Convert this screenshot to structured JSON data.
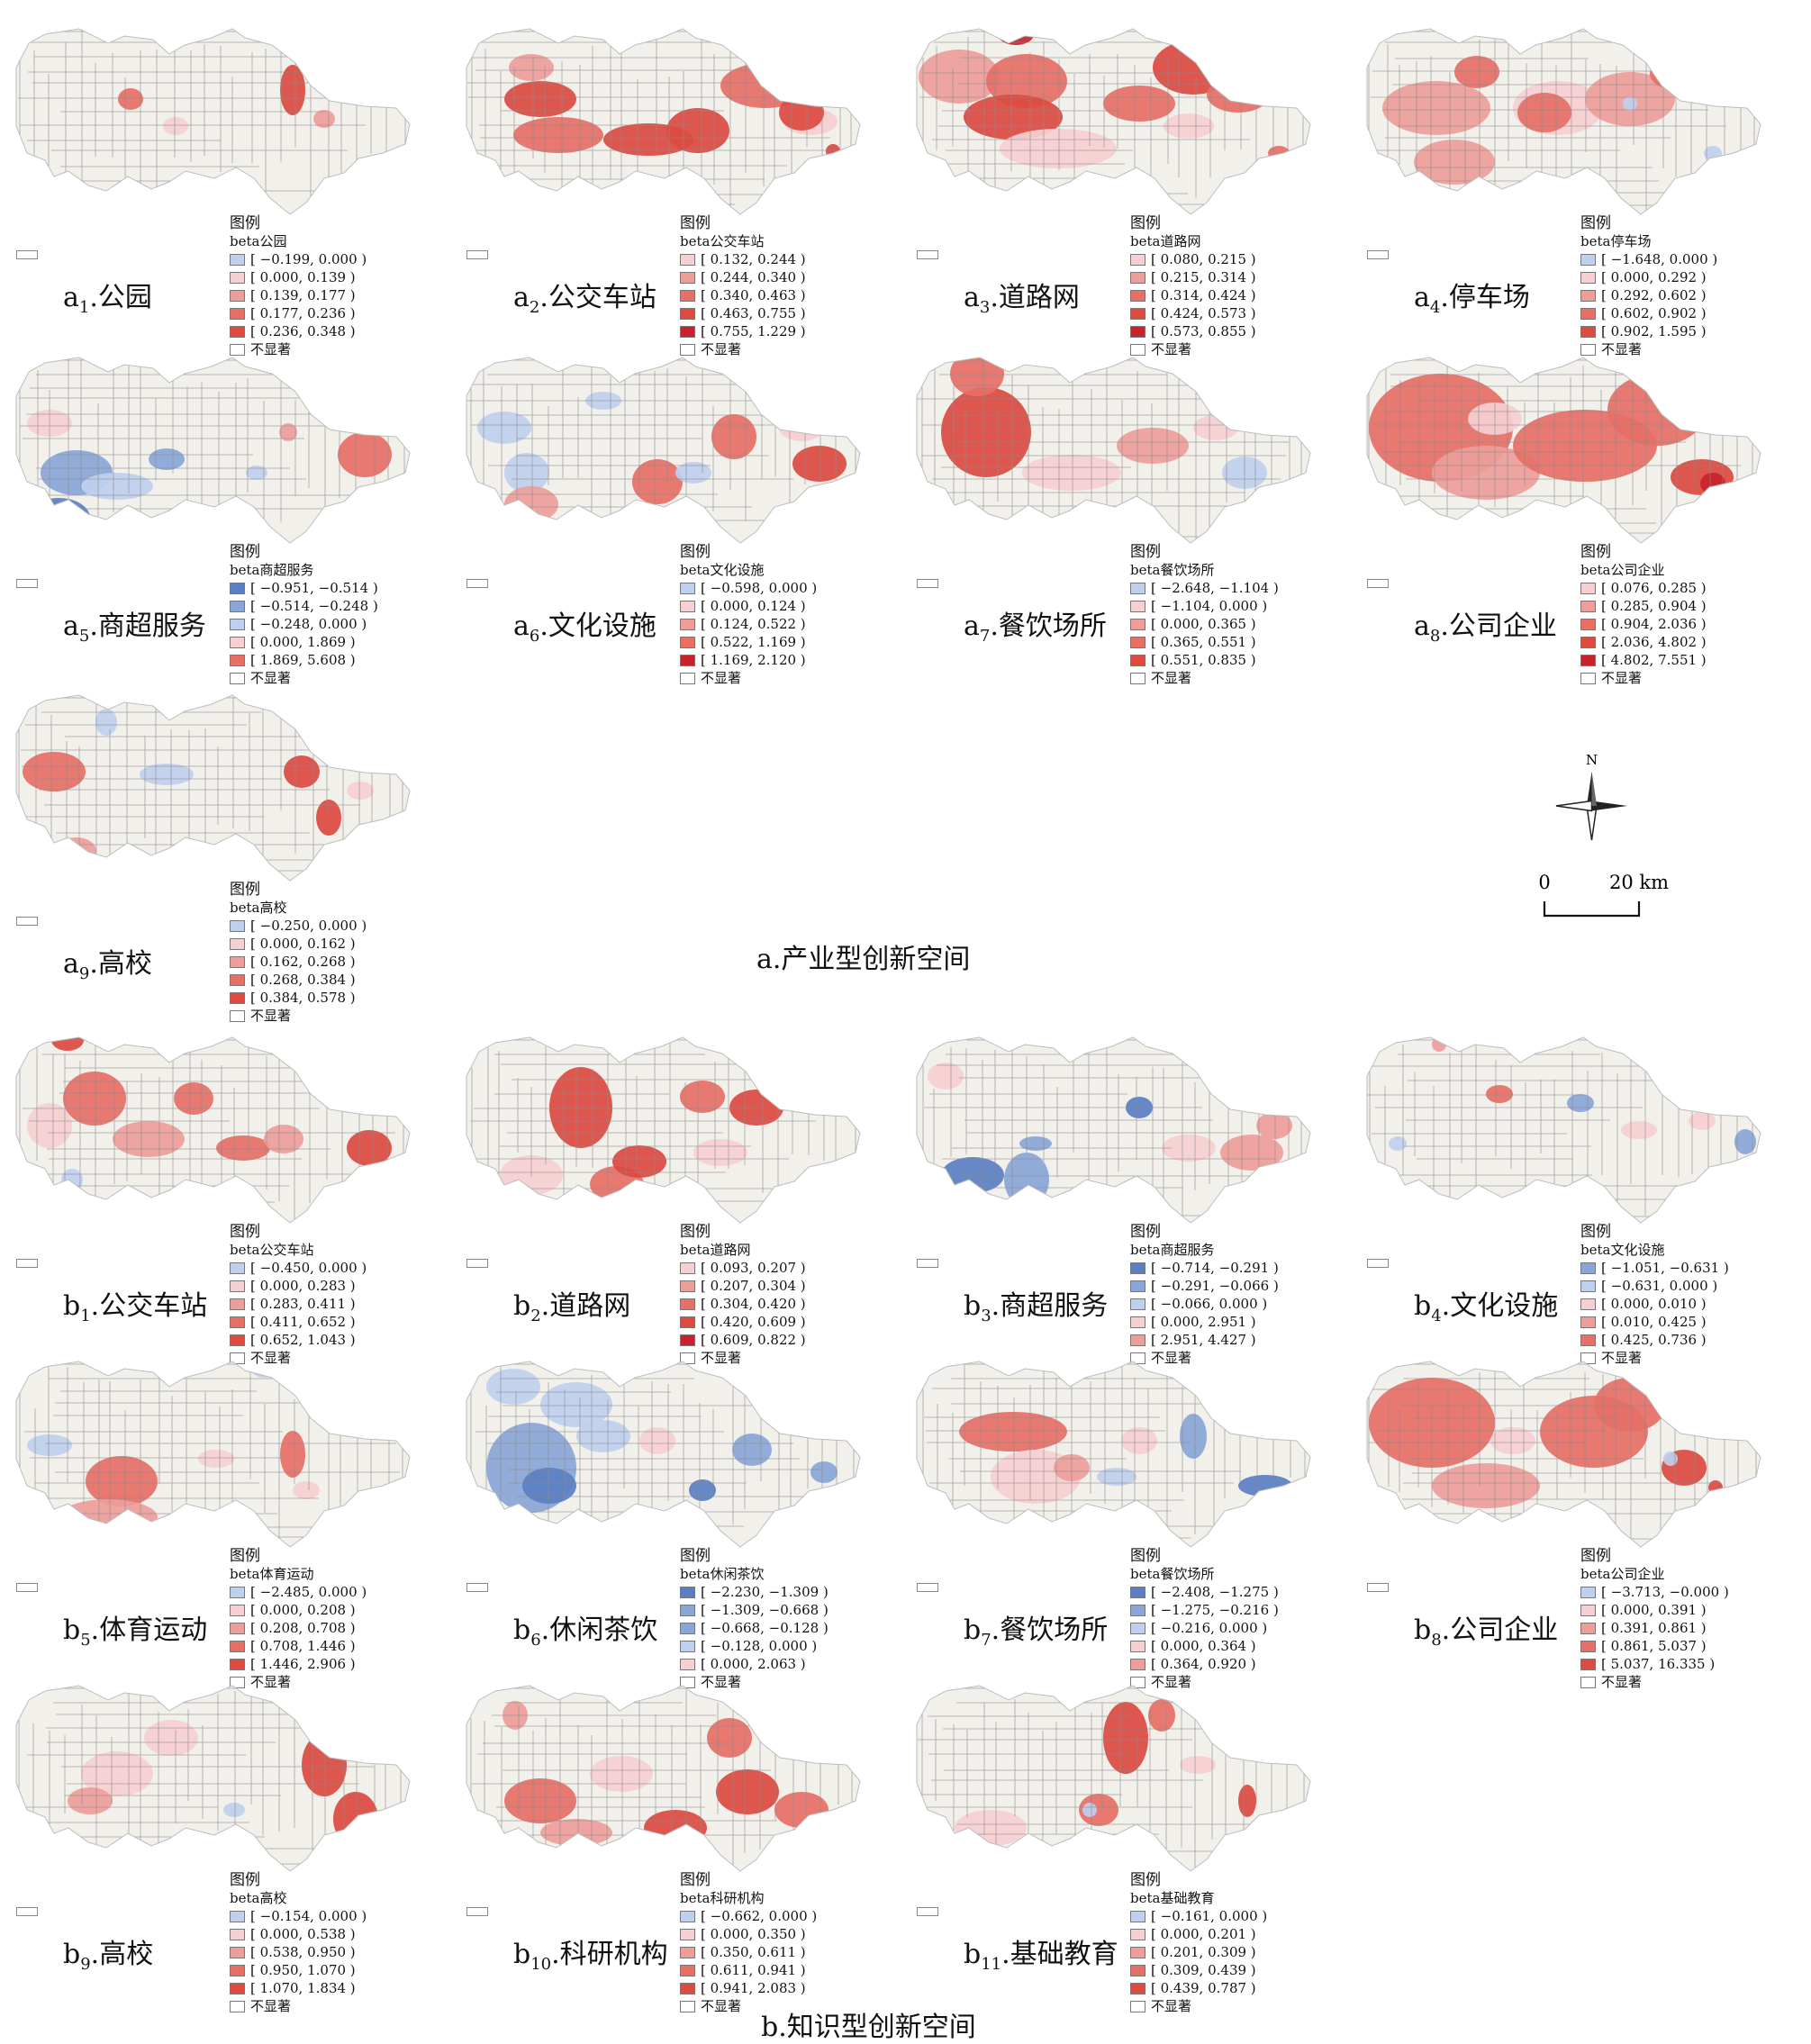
{
  "section_a": {
    "title": "a.产业型创新空间"
  },
  "section_b": {
    "title": "b.知识型创新空间"
  },
  "north": "N",
  "scale": {
    "zero": "0",
    "end": "20 km"
  },
  "colors": {
    "blue3": "#5b7fc2",
    "blue2": "#8aa6d8",
    "blue1": "#bfd0ee",
    "pink": "#f6cfd2",
    "red1": "#ee9e9a",
    "red2": "#e66f66",
    "red3": "#dc4a40",
    "red4": "#c8222c",
    "base": "#f2f0eb",
    "nonsig": "#ffffff"
  },
  "panels": [
    {
      "id": "a1",
      "prefix": "a",
      "sub": "1",
      "name": ".公园",
      "legend_title": "图例",
      "var": "beta公园",
      "classes": [
        {
          "range": "[ −0.199, 0.000 )",
          "color": "blue1"
        },
        {
          "range": "[ 0.000, 0.139 )",
          "color": "pink"
        },
        {
          "range": "[ 0.139, 0.177 )",
          "color": "red1"
        },
        {
          "range": "[ 0.177, 0.236 )",
          "color": "red2"
        },
        {
          "range": "[ 0.236, 0.348 )",
          "color": "red3"
        }
      ],
      "nonsig": "不显著"
    },
    {
      "id": "a2",
      "prefix": "a",
      "sub": "2",
      "name": ".公交车站",
      "legend_title": "图例",
      "var": "beta公交车站",
      "classes": [
        {
          "range": "[ 0.132, 0.244 )",
          "color": "pink"
        },
        {
          "range": "[ 0.244, 0.340 )",
          "color": "red1"
        },
        {
          "range": "[ 0.340, 0.463 )",
          "color": "red2"
        },
        {
          "range": "[ 0.463, 0.755 )",
          "color": "red3"
        },
        {
          "range": "[ 0.755, 1.229 )",
          "color": "red4"
        }
      ],
      "nonsig": "不显著"
    },
    {
      "id": "a3",
      "prefix": "a",
      "sub": "3",
      "name": ".道路网",
      "legend_title": "图例",
      "var": "beta道路网",
      "classes": [
        {
          "range": "[ 0.080, 0.215 )",
          "color": "pink"
        },
        {
          "range": "[ 0.215, 0.314 )",
          "color": "red1"
        },
        {
          "range": "[ 0.314, 0.424 )",
          "color": "red2"
        },
        {
          "range": "[ 0.424, 0.573 )",
          "color": "red3"
        },
        {
          "range": "[ 0.573, 0.855 )",
          "color": "red4"
        }
      ],
      "nonsig": "不显著"
    },
    {
      "id": "a4",
      "prefix": "a",
      "sub": "4",
      "name": ".停车场",
      "legend_title": "图例",
      "var": "beta停车场",
      "classes": [
        {
          "range": "[ −1.648, 0.000 )",
          "color": "blue1"
        },
        {
          "range": "[ 0.000, 0.292 )",
          "color": "pink"
        },
        {
          "range": "[ 0.292, 0.602 )",
          "color": "red1"
        },
        {
          "range": "[ 0.602, 0.902 )",
          "color": "red2"
        },
        {
          "range": "[ 0.902, 1.595 )",
          "color": "red3"
        }
      ],
      "nonsig": "不显著"
    },
    {
      "id": "a5",
      "prefix": "a",
      "sub": "5",
      "name": ".商超服务",
      "legend_title": "图例",
      "var": "beta商超服务",
      "classes": [
        {
          "range": "[ −0.951, −0.514 )",
          "color": "blue3"
        },
        {
          "range": "[ −0.514, −0.248 )",
          "color": "blue2"
        },
        {
          "range": "[ −0.248, 0.000 )",
          "color": "blue1"
        },
        {
          "range": "[ 0.000, 1.869 )",
          "color": "pink"
        },
        {
          "range": "[ 1.869, 5.608 )",
          "color": "red2"
        }
      ],
      "nonsig": "不显著"
    },
    {
      "id": "a6",
      "prefix": "a",
      "sub": "6",
      "name": ".文化设施",
      "legend_title": "图例",
      "var": "beta文化设施",
      "classes": [
        {
          "range": "[ −0.598, 0.000 )",
          "color": "blue1"
        },
        {
          "range": "[ 0.000, 0.124 )",
          "color": "pink"
        },
        {
          "range": "[ 0.124, 0.522 )",
          "color": "red1"
        },
        {
          "range": "[ 0.522, 1.169 )",
          "color": "red2"
        },
        {
          "range": "[ 1.169, 2.120 )",
          "color": "red4"
        }
      ],
      "nonsig": "不显著"
    },
    {
      "id": "a7",
      "prefix": "a",
      "sub": "7",
      "name": ".餐饮场所",
      "legend_title": "图例",
      "var": "beta餐饮场所",
      "classes": [
        {
          "range": "[ −2.648, −1.104 )",
          "color": "blue1"
        },
        {
          "range": "[ −1.104, 0.000 )",
          "color": "pink"
        },
        {
          "range": "[ 0.000, 0.365 )",
          "color": "red1"
        },
        {
          "range": "[ 0.365, 0.551 )",
          "color": "red2"
        },
        {
          "range": "[ 0.551, 0.835 )",
          "color": "red3"
        }
      ],
      "nonsig": "不显著"
    },
    {
      "id": "a8",
      "prefix": "a",
      "sub": "8",
      "name": ".公司企业",
      "legend_title": "图例",
      "var": "beta公司企业",
      "classes": [
        {
          "range": "[ 0.076, 0.285 )",
          "color": "pink"
        },
        {
          "range": "[ 0.285, 0.904 )",
          "color": "red1"
        },
        {
          "range": "[ 0.904, 2.036 )",
          "color": "red2"
        },
        {
          "range": "[ 2.036, 4.802 )",
          "color": "red3"
        },
        {
          "range": "[ 4.802, 7.551 )",
          "color": "red4"
        }
      ],
      "nonsig": "不显著"
    },
    {
      "id": "a9",
      "prefix": "a",
      "sub": "9",
      "name": ".高校",
      "legend_title": "图例",
      "var": "beta高校",
      "classes": [
        {
          "range": "[ −0.250, 0.000 )",
          "color": "blue1"
        },
        {
          "range": "[ 0.000, 0.162 )",
          "color": "pink"
        },
        {
          "range": "[ 0.162, 0.268 )",
          "color": "red1"
        },
        {
          "range": "[ 0.268, 0.384 )",
          "color": "red2"
        },
        {
          "range": "[ 0.384, 0.578 )",
          "color": "red3"
        }
      ],
      "nonsig": "不显著"
    },
    {
      "id": "b1",
      "prefix": "b",
      "sub": "1",
      "name": ".公交车站",
      "legend_title": "图例",
      "var": "beta公交车站",
      "classes": [
        {
          "range": "[ −0.450, 0.000 )",
          "color": "blue1"
        },
        {
          "range": "[ 0.000, 0.283 )",
          "color": "pink"
        },
        {
          "range": "[ 0.283, 0.411 )",
          "color": "red1"
        },
        {
          "range": "[ 0.411, 0.652 )",
          "color": "red2"
        },
        {
          "range": "[ 0.652, 1.043 )",
          "color": "red3"
        }
      ],
      "nonsig": "不显著"
    },
    {
      "id": "b2",
      "prefix": "b",
      "sub": "2",
      "name": ".道路网",
      "legend_title": "图例",
      "var": "beta道路网",
      "classes": [
        {
          "range": "[ 0.093, 0.207 )",
          "color": "pink"
        },
        {
          "range": "[ 0.207, 0.304 )",
          "color": "red1"
        },
        {
          "range": "[ 0.304, 0.420 )",
          "color": "red2"
        },
        {
          "range": "[ 0.420, 0.609 )",
          "color": "red3"
        },
        {
          "range": "[ 0.609, 0.822 )",
          "color": "red4"
        }
      ],
      "nonsig": "不显著"
    },
    {
      "id": "b3",
      "prefix": "b",
      "sub": "3",
      "name": ".商超服务",
      "legend_title": "图例",
      "var": "beta商超服务",
      "classes": [
        {
          "range": "[ −0.714, −0.291 )",
          "color": "blue3"
        },
        {
          "range": "[ −0.291, −0.066 )",
          "color": "blue2"
        },
        {
          "range": "[ −0.066, 0.000 )",
          "color": "blue1"
        },
        {
          "range": "[ 0.000, 2.951 )",
          "color": "pink"
        },
        {
          "range": "[ 2.951, 4.427 )",
          "color": "red1"
        }
      ],
      "nonsig": "不显著"
    },
    {
      "id": "b4",
      "prefix": "b",
      "sub": "4",
      "name": ".文化设施",
      "legend_title": "图例",
      "var": "beta文化设施",
      "classes": [
        {
          "range": "[ −1.051, −0.631 )",
          "color": "blue2"
        },
        {
          "range": "[ −0.631, 0.000 )",
          "color": "blue1"
        },
        {
          "range": "[ 0.000, 0.010 )",
          "color": "pink"
        },
        {
          "range": "[ 0.010, 0.425 )",
          "color": "red1"
        },
        {
          "range": "[ 0.425, 0.736 )",
          "color": "red2"
        }
      ],
      "nonsig": "不显著"
    },
    {
      "id": "b5",
      "prefix": "b",
      "sub": "5",
      "name": ".体育运动",
      "legend_title": "图例",
      "var": "beta体育运动",
      "classes": [
        {
          "range": "[ −2.485, 0.000 )",
          "color": "blue1"
        },
        {
          "range": "[ 0.000, 0.208 )",
          "color": "pink"
        },
        {
          "range": "[ 0.208, 0.708 )",
          "color": "red1"
        },
        {
          "range": "[ 0.708, 1.446 )",
          "color": "red2"
        },
        {
          "range": "[ 1.446, 2.906 )",
          "color": "red3"
        }
      ],
      "nonsig": "不显著"
    },
    {
      "id": "b6",
      "prefix": "b",
      "sub": "6",
      "name": ".休闲茶饮",
      "legend_title": "图例",
      "var": "beta休闲茶饮",
      "classes": [
        {
          "range": "[ −2.230, −1.309 )",
          "color": "blue3"
        },
        {
          "range": "[ −1.309, −0.668 )",
          "color": "blue2"
        },
        {
          "range": "[ −0.668, −0.128 )",
          "color": "blue2"
        },
        {
          "range": "[ −0.128, 0.000 )",
          "color": "blue1"
        },
        {
          "range": "[ 0.000, 2.063 )",
          "color": "pink"
        }
      ],
      "nonsig": "不显著"
    },
    {
      "id": "b7",
      "prefix": "b",
      "sub": "7",
      "name": ".餐饮场所",
      "legend_title": "图例",
      "var": "beta餐饮场所",
      "classes": [
        {
          "range": "[ −2.408, −1.275 )",
          "color": "blue3"
        },
        {
          "range": "[ −1.275, −0.216 )",
          "color": "blue2"
        },
        {
          "range": "[ −0.216, 0.000 )",
          "color": "blue1"
        },
        {
          "range": "[ 0.000, 0.364 )",
          "color": "pink"
        },
        {
          "range": "[ 0.364, 0.920 )",
          "color": "red1"
        }
      ],
      "nonsig": "不显著"
    },
    {
      "id": "b8",
      "prefix": "b",
      "sub": "8",
      "name": ".公司企业",
      "legend_title": "图例",
      "var": "beta公司企业",
      "classes": [
        {
          "range": "[ −3.713, −0.000 )",
          "color": "blue1"
        },
        {
          "range": "[ 0.000, 0.391 )",
          "color": "pink"
        },
        {
          "range": "[ 0.391, 0.861 )",
          "color": "red1"
        },
        {
          "range": "[ 0.861, 5.037 )",
          "color": "red2"
        },
        {
          "range": "[ 5.037, 16.335 )",
          "color": "red3"
        }
      ],
      "nonsig": "不显著"
    },
    {
      "id": "b9",
      "prefix": "b",
      "sub": "9",
      "name": ".高校",
      "legend_title": "图例",
      "var": "beta高校",
      "classes": [
        {
          "range": "[ −0.154, 0.000 )",
          "color": "blue1"
        },
        {
          "range": "[ 0.000, 0.538 )",
          "color": "pink"
        },
        {
          "range": "[ 0.538, 0.950 )",
          "color": "red1"
        },
        {
          "range": "[ 0.950, 1.070 )",
          "color": "red2"
        },
        {
          "range": "[ 1.070, 1.834 )",
          "color": "red3"
        }
      ],
      "nonsig": "不显著"
    },
    {
      "id": "b10",
      "prefix": "b",
      "sub": "10",
      "name": ".科研机构",
      "legend_title": "图例",
      "var": "beta科研机构",
      "classes": [
        {
          "range": "[ −0.662, 0.000 )",
          "color": "blue1"
        },
        {
          "range": "[ 0.000, 0.350 )",
          "color": "pink"
        },
        {
          "range": "[ 0.350, 0.611 )",
          "color": "red1"
        },
        {
          "range": "[ 0.611, 0.941 )",
          "color": "red2"
        },
        {
          "range": "[ 0.941, 2.083 )",
          "color": "red3"
        }
      ],
      "nonsig": "不显著"
    },
    {
      "id": "b11",
      "prefix": "b",
      "sub": "11",
      "name": ".基础教育",
      "legend_title": "图例",
      "var": "beta基础教育",
      "classes": [
        {
          "range": "[ −0.161, 0.000 )",
          "color": "blue1"
        },
        {
          "range": "[ 0.000, 0.201 )",
          "color": "pink"
        },
        {
          "range": "[ 0.201, 0.309 )",
          "color": "red1"
        },
        {
          "range": "[ 0.309, 0.439 )",
          "color": "red2"
        },
        {
          "range": "[ 0.439, 0.787 )",
          "color": "red3"
        }
      ],
      "nonsig": "不显著"
    }
  ]
}
